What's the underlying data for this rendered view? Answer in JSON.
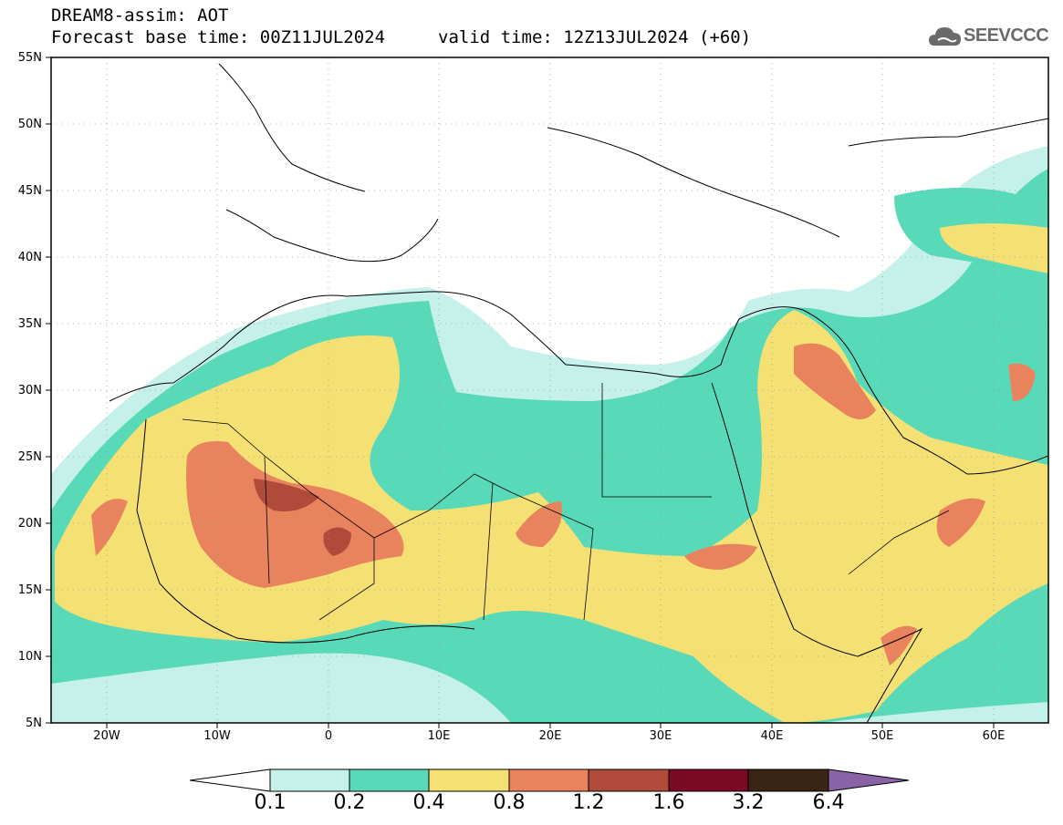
{
  "header": {
    "title": "DREAM8-assim: AOT",
    "base_time": "Forecast base time: 00Z11JUL2024",
    "valid_time": "valid time: 12Z13JUL2024 (+60)"
  },
  "logo": {
    "text": "SEEVCCC",
    "icon": "cloud-icon"
  },
  "map": {
    "lat_labels": [
      "55N",
      "50N",
      "45N",
      "40N",
      "35N",
      "30N",
      "25N",
      "20N",
      "15N",
      "10N",
      "5N"
    ],
    "lon_labels": [
      "20W",
      "10W",
      "0",
      "10E",
      "20E",
      "30E",
      "40E",
      "50E",
      "60E"
    ],
    "lat_range": [
      5,
      55
    ],
    "lon_range": [
      -25,
      65
    ]
  },
  "legend": {
    "levels": [
      "0.1",
      "0.2",
      "0.4",
      "0.8",
      "1.2",
      "1.6",
      "3.2",
      "6.4"
    ],
    "colors": [
      "#ffffff",
      "#c6f0ea",
      "#58d9b8",
      "#f5e173",
      "#e8835e",
      "#b04a3a",
      "#7a0a24",
      "#3a2414",
      "#8a62a8"
    ]
  }
}
